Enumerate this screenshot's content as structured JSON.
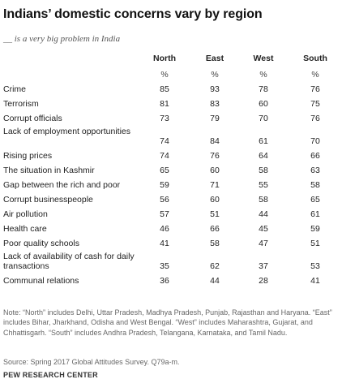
{
  "title": "Indians’ domestic concerns vary by region",
  "subtitle": "__ is a very big problem in India",
  "chart_data": {
    "type": "table",
    "columns": [
      "North",
      "East",
      "West",
      "South"
    ],
    "unit": "%",
    "rows": [
      {
        "label": "Crime",
        "values": [
          85,
          93,
          78,
          76
        ]
      },
      {
        "label": "Terrorism",
        "values": [
          81,
          83,
          60,
          75
        ]
      },
      {
        "label": "Corrupt officials",
        "values": [
          73,
          79,
          70,
          76
        ]
      },
      {
        "label": "Lack of employment opportunities",
        "values": [
          74,
          84,
          61,
          70
        ]
      },
      {
        "label": "Rising prices",
        "values": [
          74,
          76,
          64,
          66
        ]
      },
      {
        "label": "The situation in Kashmir",
        "values": [
          65,
          60,
          58,
          63
        ]
      },
      {
        "label": "Gap between the rich and poor",
        "values": [
          59,
          71,
          55,
          58
        ]
      },
      {
        "label": "Corrupt businesspeople",
        "values": [
          56,
          60,
          58,
          65
        ]
      },
      {
        "label": "Air pollution",
        "values": [
          57,
          51,
          44,
          61
        ]
      },
      {
        "label": "Health care",
        "values": [
          46,
          66,
          45,
          59
        ]
      },
      {
        "label": "Poor quality schools",
        "values": [
          41,
          58,
          47,
          51
        ]
      },
      {
        "label": "Lack of availability of cash for daily transactions",
        "values": [
          35,
          62,
          37,
          53
        ]
      },
      {
        "label": "Communal relations",
        "values": [
          36,
          44,
          28,
          41
        ]
      }
    ]
  },
  "note": "Note: “North” includes Delhi, Uttar Pradesh, Madhya Pradesh, Punjab, Rajasthan and Haryana. “East” includes Bihar, Jharkhand, Odisha and West Bengal. “West” includes Maharashtra, Gujarat, and Chhattisgarh. “South” includes Andhra Pradesh, Telangana, Karnataka, and Tamil Nadu.",
  "source": "Source: Spring 2017 Global Attitudes Survey. Q79a-m.",
  "brand": "PEW RESEARCH CENTER"
}
